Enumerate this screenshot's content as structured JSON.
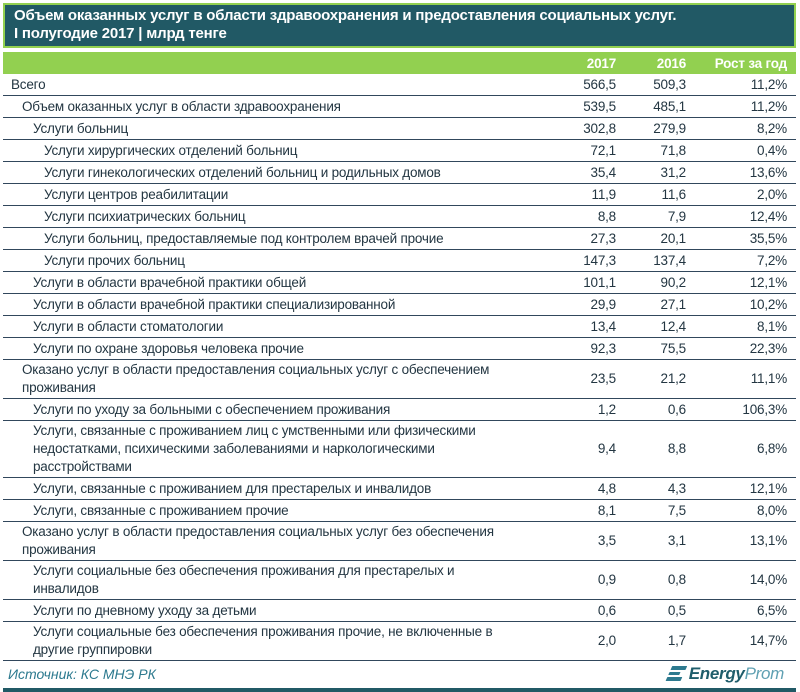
{
  "colors": {
    "header_teal": "#215965",
    "accent_green": "#92D050",
    "row_line": "#31475C",
    "body_text": "#233642",
    "source_teal": "#2D7A8F"
  },
  "chart_data": {
    "type": "table",
    "title": "Объем оказанных услуг в области здравоохранения и предоставления социальных услуг.",
    "subtitle": "I полугодие 2017 | млрд тенге",
    "columns": [
      "",
      "2017",
      "2016",
      "Рост за год"
    ],
    "rows": [
      {
        "label": "Всего",
        "indent": 0,
        "v2017": "566,5",
        "v2016": "509,3",
        "growth": "11,2%"
      },
      {
        "label": "Объем оказанных услуг в области здравоохранения",
        "indent": 1,
        "v2017": "539,5",
        "v2016": "485,1",
        "growth": "11,2%"
      },
      {
        "label": "Услуги больниц",
        "indent": 2,
        "v2017": "302,8",
        "v2016": "279,9",
        "growth": "8,2%"
      },
      {
        "label": "Услуги хирургических отделений больниц",
        "indent": 3,
        "v2017": "72,1",
        "v2016": "71,8",
        "growth": "0,4%"
      },
      {
        "label": "Услуги гинекологических отделений больниц и родильных домов",
        "indent": 3,
        "v2017": "35,4",
        "v2016": "31,2",
        "growth": "13,6%"
      },
      {
        "label": "Услуги центров реабилитации",
        "indent": 3,
        "v2017": "11,9",
        "v2016": "11,6",
        "growth": "2,0%"
      },
      {
        "label": "Услуги психиатрических больниц",
        "indent": 3,
        "v2017": "8,8",
        "v2016": "7,9",
        "growth": "12,4%"
      },
      {
        "label": "Услуги больниц, предоставляемые под контролем врачей прочие",
        "indent": 3,
        "v2017": "27,3",
        "v2016": "20,1",
        "growth": "35,5%"
      },
      {
        "label": "Услуги прочих больниц",
        "indent": 3,
        "v2017": "147,3",
        "v2016": "137,4",
        "growth": "7,2%"
      },
      {
        "label": "Услуги в области врачебной практики общей",
        "indent": 2,
        "v2017": "101,1",
        "v2016": "90,2",
        "growth": "12,1%"
      },
      {
        "label": "Услуги в области врачебной практики специализированной",
        "indent": 2,
        "v2017": "29,9",
        "v2016": "27,1",
        "growth": "10,2%"
      },
      {
        "label": "Услуги в области стоматологии",
        "indent": 2,
        "v2017": "13,4",
        "v2016": "12,4",
        "growth": "8,1%"
      },
      {
        "label": "Услуги по охране здоровья человека прочие",
        "indent": 2,
        "v2017": "92,3",
        "v2016": "75,5",
        "growth": "22,3%"
      },
      {
        "label": "Оказано услуг в области предоставления социальных услуг с обеспечением проживания",
        "indent": 1,
        "v2017": "23,5",
        "v2016": "21,2",
        "growth": "11,1%"
      },
      {
        "label": "Услуги по уходу за больными с обеспечением проживания",
        "indent": 2,
        "v2017": "1,2",
        "v2016": "0,6",
        "growth": "106,3%"
      },
      {
        "label": "Услуги, связанные с проживанием лиц с умственными или физическими недостатками,  психическими  заболеваниями и наркологическими расстройствами",
        "indent": 2,
        "v2017": "9,4",
        "v2016": "8,8",
        "growth": "6,8%"
      },
      {
        "label": "Услуги, связанные с проживанием для престарелых и инвалидов",
        "indent": 2,
        "v2017": "4,8",
        "v2016": "4,3",
        "growth": "12,1%"
      },
      {
        "label": "Услуги, связанные с проживанием прочие",
        "indent": 2,
        "v2017": "8,1",
        "v2016": "7,5",
        "growth": "8,0%"
      },
      {
        "label": "Оказано услуг в области предоставления социальных услуг без обеспечения проживания",
        "indent": 1,
        "v2017": "3,5",
        "v2016": "3,1",
        "growth": "13,1%"
      },
      {
        "label": "Услуги социальные без обеспечения проживания для престарелых и инвалидов",
        "indent": 2,
        "v2017": "0,9",
        "v2016": "0,8",
        "growth": "14,0%"
      },
      {
        "label": "Услуги по дневному уходу за детьми",
        "indent": 2,
        "v2017": "0,6",
        "v2016": "0,5",
        "growth": "6,5%"
      },
      {
        "label": "Услуги социальные без обеспечения проживания прочие, не включенные в другие группировки",
        "indent": 2,
        "v2017": "2,0",
        "v2016": "1,7",
        "growth": "14,7%"
      }
    ]
  },
  "footer": {
    "source": "Источник: КС МНЭ РК",
    "logo_bold": "Energy",
    "logo_light": "Prom"
  }
}
